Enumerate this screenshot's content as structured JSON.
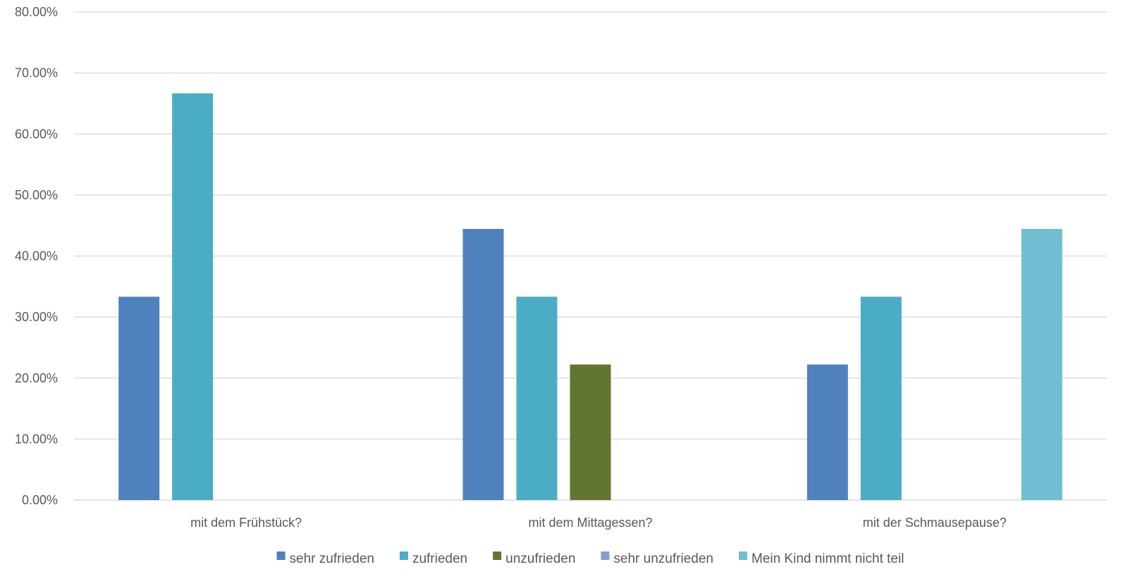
{
  "chart_data": {
    "type": "bar",
    "title": "",
    "xlabel": "",
    "ylabel": "",
    "categories": [
      "mit dem Frühstück?",
      "mit dem Mittagessen?",
      "mit der Schmausepause?"
    ],
    "series": [
      {
        "name": "sehr zufrieden",
        "color": "#4f81bd",
        "values": [
          33.33,
          44.44,
          22.22
        ]
      },
      {
        "name": "zufrieden",
        "color": "#4bacc6",
        "values": [
          66.67,
          33.33,
          33.33
        ]
      },
      {
        "name": "unzufrieden",
        "color": "#627631",
        "values": [
          0,
          22.22,
          0
        ]
      },
      {
        "name": "sehr unzufrieden",
        "color": "#7f9fd1",
        "values": [
          0,
          0,
          0
        ]
      },
      {
        "name": "Mein Kind nimmt nicht teil",
        "color": "#6fbed1",
        "values": [
          0,
          0,
          44.44
        ]
      }
    ],
    "ylim": [
      0,
      80
    ],
    "yticks": [
      0,
      10,
      20,
      30,
      40,
      50,
      60,
      70,
      80
    ],
    "ytick_labels": [
      "0.00%",
      "10.00%",
      "20.00%",
      "30.00%",
      "40.00%",
      "50.00%",
      "60.00%",
      "70.00%",
      "80.00%"
    ],
    "grid": true,
    "legend_position": "bottom"
  }
}
